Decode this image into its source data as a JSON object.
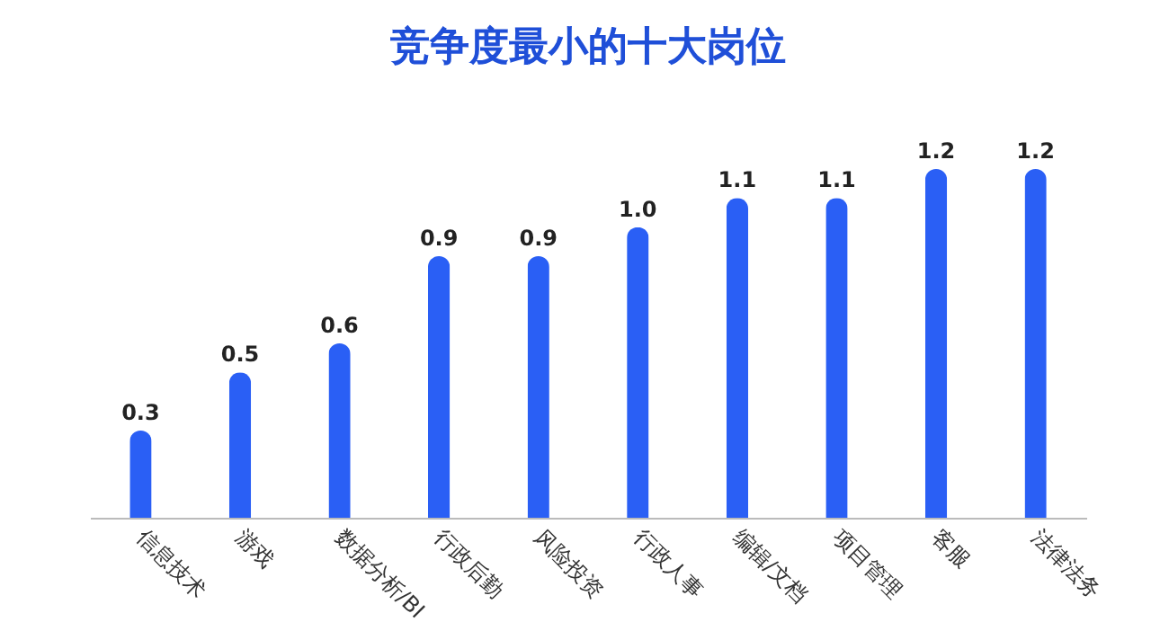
{
  "chart_data": {
    "type": "bar",
    "title": "竞争度最小的十大岗位",
    "categories": [
      "信息技术",
      "游戏",
      "数据分析/BI",
      "行政后勤",
      "风险投资",
      "行政人事",
      "编辑/文档",
      "项目管理",
      "客服",
      "法律法务"
    ],
    "values": [
      0.3,
      0.5,
      0.6,
      0.9,
      0.9,
      1.0,
      1.1,
      1.1,
      1.2,
      1.2
    ],
    "value_labels": [
      "0.3",
      "0.5",
      "0.6",
      "0.9",
      "0.9",
      "1.0",
      "1.1",
      "1.1",
      "1.2",
      "1.2"
    ],
    "color": "#2a5ff5",
    "grid": false
  }
}
